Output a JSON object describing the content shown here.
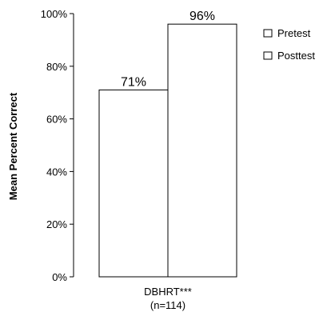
{
  "chart_data": {
    "type": "bar",
    "ylabel": "Mean Percent Correct",
    "ylim": [
      0,
      100
    ],
    "yticks": [
      0,
      20,
      40,
      60,
      80,
      100
    ],
    "ytick_labels": [
      "0%",
      "20%",
      "40%",
      "60%",
      "80%",
      "100%"
    ],
    "categories": [
      "DBHRT***"
    ],
    "category_sublabels": [
      "(n=114)"
    ],
    "series": [
      {
        "name": "Pretest",
        "values": [
          71
        ],
        "data_labels": [
          "71%"
        ]
      },
      {
        "name": "Posttest",
        "values": [
          96
        ],
        "data_labels": [
          "96%"
        ]
      }
    ],
    "legend_position": "top-right",
    "legend_marker": "□",
    "bar_fill": "#ffffff",
    "bar_stroke": "#000000",
    "grid": false
  }
}
